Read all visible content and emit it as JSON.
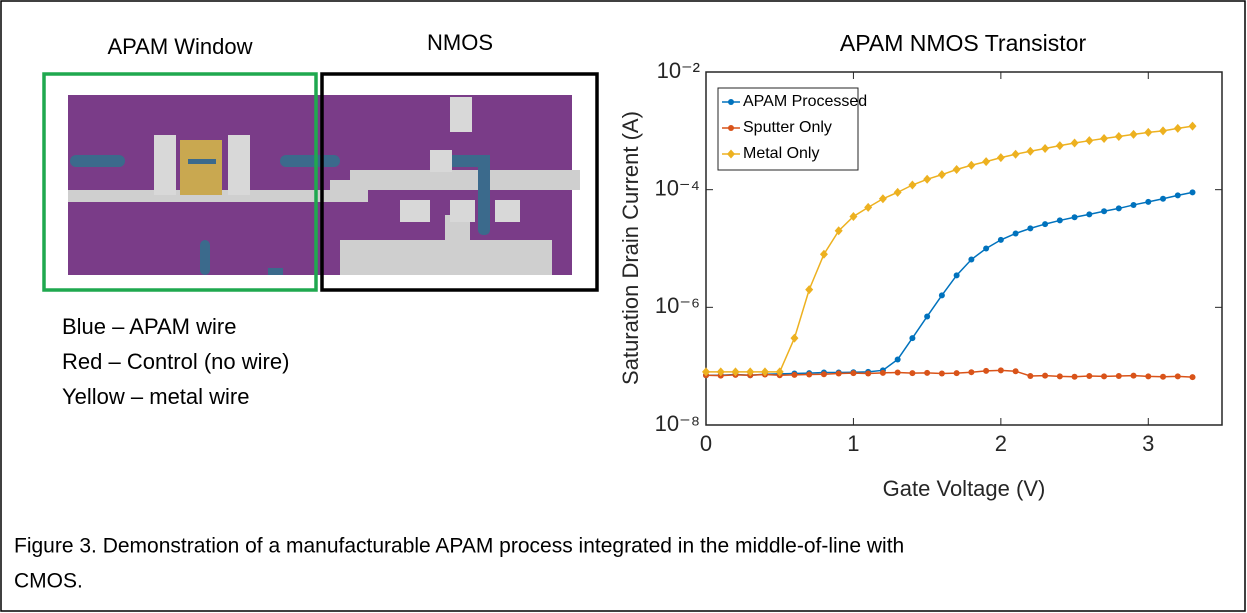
{
  "figure": {
    "window_label": "APAM Window",
    "nmos_label": "NMOS",
    "key": [
      "Blue – APAM wire",
      "Red – Control (no wire)",
      "Yellow – metal wire"
    ],
    "caption": [
      "Figure 3. Demonstration of a manufacturable APAM process integrated in the middle-of-line with",
      "CMOS."
    ]
  },
  "chart_data": {
    "type": "line",
    "title": "APAM NMOS Transistor",
    "x_label": "Gate Voltage (V)",
    "y_label": "Saturation Drain Current (A)",
    "yscale": "log",
    "legend": "upper left",
    "x": [
      0,
      0.1,
      0.2,
      0.3,
      0.4,
      0.5,
      0.6,
      0.7,
      0.8,
      0.9,
      1.0,
      1.1,
      1.2,
      1.3,
      1.4,
      1.5,
      1.6,
      1.7,
      1.8,
      1.9,
      2.0,
      2.1,
      2.2,
      2.3,
      2.4,
      2.5,
      2.6,
      2.7,
      2.8,
      2.9,
      3.0,
      3.1,
      3.2,
      3.3
    ],
    "series": [
      {
        "name": "APAM Processed",
        "color": "#0072bd",
        "marker": "circle",
        "values": [
          7e-08,
          7e-08,
          7.2e-08,
          7e-08,
          7.3e-08,
          7.4e-08,
          7.5e-08,
          7.6e-08,
          7.8e-08,
          7.8e-08,
          7.9e-08,
          8e-08,
          8.5e-08,
          1.3e-07,
          3e-07,
          7e-07,
          1.6e-06,
          3.5e-06,
          6.5e-06,
          1e-05,
          1.4e-05,
          1.8e-05,
          2.2e-05,
          2.6e-05,
          3e-05,
          3.4e-05,
          3.8e-05,
          4.3e-05,
          4.8e-05,
          5.5e-05,
          6.2e-05,
          7e-05,
          8e-05,
          9e-05
        ]
      },
      {
        "name": "Sputter Only",
        "color": "#d95319",
        "marker": "circle",
        "values": [
          7e-08,
          6.9e-08,
          7.1e-08,
          7e-08,
          7.2e-08,
          7e-08,
          7.1e-08,
          7.2e-08,
          7.3e-08,
          7.5e-08,
          7.6e-08,
          7.5e-08,
          7.7e-08,
          7.8e-08,
          7.6e-08,
          7.7e-08,
          7.5e-08,
          7.6e-08,
          7.9e-08,
          8.3e-08,
          8.5e-08,
          8.2e-08,
          6.8e-08,
          6.9e-08,
          6.7e-08,
          6.6e-08,
          6.8e-08,
          6.7e-08,
          6.8e-08,
          6.9e-08,
          6.7e-08,
          6.6e-08,
          6.7e-08,
          6.5e-08
        ]
      },
      {
        "name": "Metal Only",
        "color": "#edb120",
        "marker": "diamond",
        "values": [
          8e-08,
          8e-08,
          8e-08,
          8e-08,
          8e-08,
          8e-08,
          3e-07,
          2e-06,
          8e-06,
          2e-05,
          3.5e-05,
          5e-05,
          7e-05,
          9e-05,
          0.00012,
          0.00015,
          0.00018,
          0.00022,
          0.00026,
          0.0003,
          0.00035,
          0.0004,
          0.00045,
          0.0005,
          0.00056,
          0.00062,
          0.00068,
          0.00074,
          0.0008,
          0.00087,
          0.00094,
          0.001,
          0.0011,
          0.0012
        ]
      }
    ],
    "xlim": [
      0,
      3.5
    ],
    "xticks": [
      0,
      1,
      2,
      3
    ],
    "ylim": [
      1e-08,
      0.01
    ],
    "yticks": [
      {
        "value": 1e-08,
        "label": "10⁻⁸"
      },
      {
        "value": 1e-06,
        "label": "10⁻⁶"
      },
      {
        "value": 0.0001,
        "label": "10⁻⁴"
      },
      {
        "value": 0.01,
        "label": "10⁻²"
      }
    ]
  }
}
